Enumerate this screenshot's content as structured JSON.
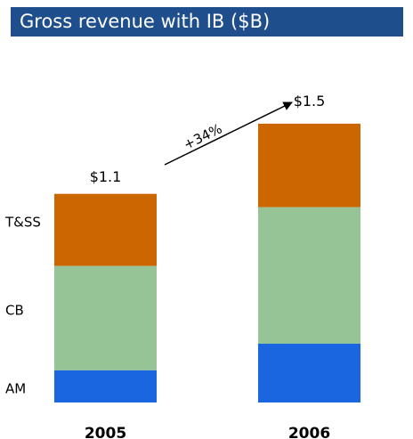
{
  "chart_data": {
    "type": "stacked-bar",
    "title": "Gross revenue with IB ($B)",
    "categories": [
      "2005",
      "2006"
    ],
    "series": [
      {
        "name": "AM",
        "color": "#1a66e0",
        "values": [
          0.17,
          0.31
        ]
      },
      {
        "name": "CB",
        "color": "#96c496",
        "values": [
          0.55,
          0.72
        ]
      },
      {
        "name": "T&SS",
        "color": "#cc6600",
        "values": [
          0.38,
          0.44
        ]
      }
    ],
    "totals": {
      "values": [
        1.1,
        1.5
      ],
      "value_labels": [
        "$1.1",
        "$1.5"
      ]
    },
    "annotation": "+34%"
  }
}
